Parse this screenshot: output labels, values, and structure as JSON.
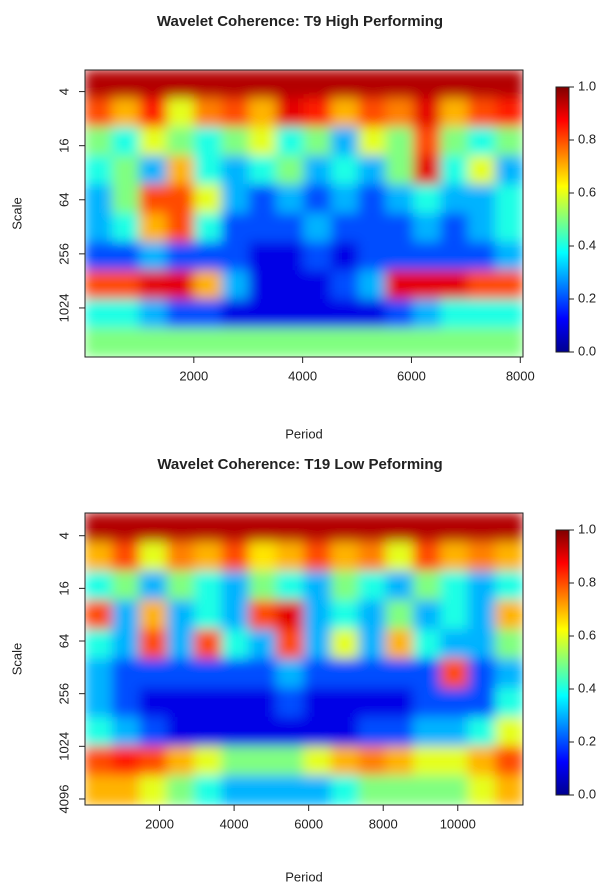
{
  "chart_data": [
    {
      "type": "heatmap",
      "title": "Wavelet Coherence: T9 High Performing",
      "x_label": "Period",
      "y_label": "Scale",
      "xlim": [
        0,
        8050
      ],
      "xticks": [
        2000,
        4000,
        6000,
        8000
      ],
      "ylim": [
        2.3,
        3600
      ],
      "yticks": [
        4,
        16,
        64,
        256,
        1024
      ],
      "y_log": true,
      "y_reversed": true,
      "clim": [
        0,
        1
      ],
      "colorbar_ticks": [
        {
          "value": 0,
          "label": "0.0"
        },
        {
          "value": 0.2,
          "label": "0.2"
        },
        {
          "value": 0.4,
          "label": "0.4"
        },
        {
          "value": 0.6,
          "label": "0.6"
        },
        {
          "value": 0.8,
          "label": "0.8"
        },
        {
          "value": 1,
          "label": "1.0"
        }
      ],
      "colormap": "jet",
      "z": [
        [
          0.95,
          0.95,
          0.95,
          0.95,
          0.95,
          0.95,
          0.95,
          0.95,
          0.95,
          0.95,
          0.95,
          0.95,
          0.95,
          0.95,
          0.95,
          0.95
        ],
        [
          0.8,
          0.7,
          0.85,
          0.6,
          0.75,
          0.8,
          0.7,
          0.9,
          0.85,
          0.7,
          0.8,
          0.75,
          0.9,
          0.7,
          0.8,
          0.85
        ],
        [
          0.5,
          0.4,
          0.6,
          0.5,
          0.4,
          0.5,
          0.6,
          0.4,
          0.5,
          0.3,
          0.6,
          0.5,
          0.8,
          0.5,
          0.4,
          0.5
        ],
        [
          0.4,
          0.5,
          0.3,
          0.7,
          0.4,
          0.3,
          0.4,
          0.5,
          0.3,
          0.4,
          0.3,
          0.5,
          0.9,
          0.4,
          0.6,
          0.3
        ],
        [
          0.3,
          0.5,
          0.8,
          0.8,
          0.6,
          0.3,
          0.2,
          0.3,
          0.2,
          0.3,
          0.2,
          0.3,
          0.4,
          0.3,
          0.3,
          0.4
        ],
        [
          0.3,
          0.4,
          0.7,
          0.8,
          0.4,
          0.2,
          0.2,
          0.2,
          0.3,
          0.2,
          0.2,
          0.2,
          0.3,
          0.2,
          0.3,
          0.4
        ],
        [
          0.2,
          0.2,
          0.3,
          0.2,
          0.2,
          0.2,
          0.1,
          0.1,
          0.2,
          0.1,
          0.2,
          0.2,
          0.2,
          0.2,
          0.2,
          0.3
        ],
        [
          0.8,
          0.8,
          0.9,
          0.9,
          0.7,
          0.3,
          0.1,
          0.1,
          0.1,
          0.2,
          0.3,
          0.9,
          0.9,
          0.9,
          0.8,
          0.8
        ],
        [
          0.4,
          0.4,
          0.3,
          0.2,
          0.2,
          0.1,
          0.1,
          0.1,
          0.1,
          0.1,
          0.1,
          0.2,
          0.3,
          0.4,
          0.4,
          0.4
        ],
        [
          0.5,
          0.5,
          0.5,
          0.5,
          0.5,
          0.5,
          0.5,
          0.5,
          0.5,
          0.5,
          0.5,
          0.5,
          0.5,
          0.5,
          0.5,
          0.5
        ]
      ]
    },
    {
      "type": "heatmap",
      "title": "Wavelet Coherence: T19 Low Peforming",
      "x_label": "Period",
      "y_label": "Scale",
      "xlim": [
        0,
        11750
      ],
      "xticks": [
        2000,
        4000,
        6000,
        8000,
        10000
      ],
      "ylim": [
        2.2,
        4800
      ],
      "yticks": [
        4,
        16,
        64,
        256,
        1024,
        4096
      ],
      "y_log": true,
      "y_reversed": true,
      "clim": [
        0,
        1
      ],
      "colorbar_ticks": [
        {
          "value": 0,
          "label": "0.0"
        },
        {
          "value": 0.2,
          "label": "0.2"
        },
        {
          "value": 0.4,
          "label": "0.4"
        },
        {
          "value": 0.6,
          "label": "0.6"
        },
        {
          "value": 0.8,
          "label": "0.8"
        },
        {
          "value": 1,
          "label": "1.0"
        }
      ],
      "colormap": "jet",
      "z": [
        [
          0.95,
          0.95,
          0.95,
          0.95,
          0.95,
          0.95,
          0.95,
          0.95,
          0.95,
          0.95,
          0.95,
          0.95,
          0.95,
          0.95,
          0.95,
          0.95
        ],
        [
          0.7,
          0.8,
          0.6,
          0.75,
          0.7,
          0.8,
          0.65,
          0.7,
          0.8,
          0.7,
          0.75,
          0.6,
          0.8,
          0.7,
          0.75,
          0.7
        ],
        [
          0.4,
          0.5,
          0.3,
          0.5,
          0.4,
          0.3,
          0.5,
          0.4,
          0.3,
          0.5,
          0.4,
          0.3,
          0.5,
          0.4,
          0.3,
          0.4
        ],
        [
          0.8,
          0.3,
          0.7,
          0.3,
          0.4,
          0.3,
          0.8,
          0.9,
          0.3,
          0.4,
          0.3,
          0.5,
          0.3,
          0.4,
          0.3,
          0.7
        ],
        [
          0.4,
          0.3,
          0.8,
          0.3,
          0.8,
          0.4,
          0.3,
          0.8,
          0.3,
          0.6,
          0.3,
          0.7,
          0.4,
          0.3,
          0.3,
          0.5
        ],
        [
          0.3,
          0.2,
          0.2,
          0.2,
          0.2,
          0.2,
          0.2,
          0.3,
          0.2,
          0.2,
          0.2,
          0.2,
          0.2,
          0.8,
          0.2,
          0.3
        ],
        [
          0.3,
          0.2,
          0.1,
          0.1,
          0.1,
          0.1,
          0.1,
          0.2,
          0.1,
          0.1,
          0.1,
          0.1,
          0.2,
          0.2,
          0.2,
          0.4
        ],
        [
          0.4,
          0.3,
          0.2,
          0.1,
          0.1,
          0.1,
          0.1,
          0.1,
          0.1,
          0.1,
          0.2,
          0.2,
          0.3,
          0.3,
          0.4,
          0.6
        ],
        [
          0.8,
          0.85,
          0.8,
          0.7,
          0.6,
          0.5,
          0.5,
          0.5,
          0.6,
          0.7,
          0.75,
          0.7,
          0.6,
          0.6,
          0.7,
          0.8
        ],
        [
          0.7,
          0.7,
          0.6,
          0.5,
          0.4,
          0.3,
          0.3,
          0.3,
          0.3,
          0.4,
          0.5,
          0.5,
          0.5,
          0.5,
          0.6,
          0.7
        ]
      ]
    }
  ]
}
